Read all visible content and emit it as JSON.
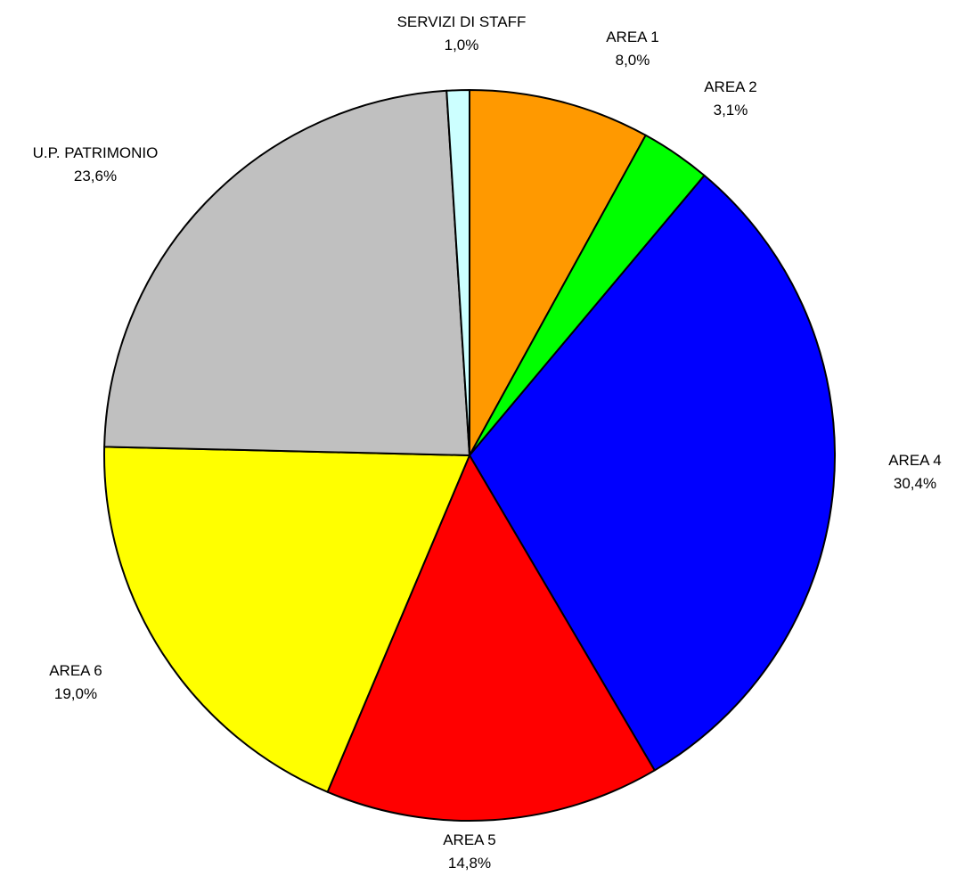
{
  "chart_data": {
    "type": "pie",
    "title": "",
    "start": "top",
    "direction": "clockwise",
    "slices": [
      {
        "label": "AREA 1",
        "value": 8.0,
        "value_text": "8,0%",
        "color": "#FF9900"
      },
      {
        "label": "AREA 2",
        "value": 3.1,
        "value_text": "3,1%",
        "color": "#00FF00"
      },
      {
        "label": "AREA 4",
        "value": 30.4,
        "value_text": "30,4%",
        "color": "#0000FF"
      },
      {
        "label": "AREA 5",
        "value": 14.8,
        "value_text": "14,8%",
        "color": "#FF0000"
      },
      {
        "label": "AREA 6",
        "value": 19.0,
        "value_text": "19,0%",
        "color": "#FFFF00"
      },
      {
        "label": "U.P. PATRIMONIO",
        "value": 23.6,
        "value_text": "23,6%",
        "color": "#C0C0C0"
      },
      {
        "label": "SERVIZI DI STAFF",
        "value": 1.0,
        "value_text": "1,0%",
        "color": "#CCFFFF"
      }
    ]
  }
}
